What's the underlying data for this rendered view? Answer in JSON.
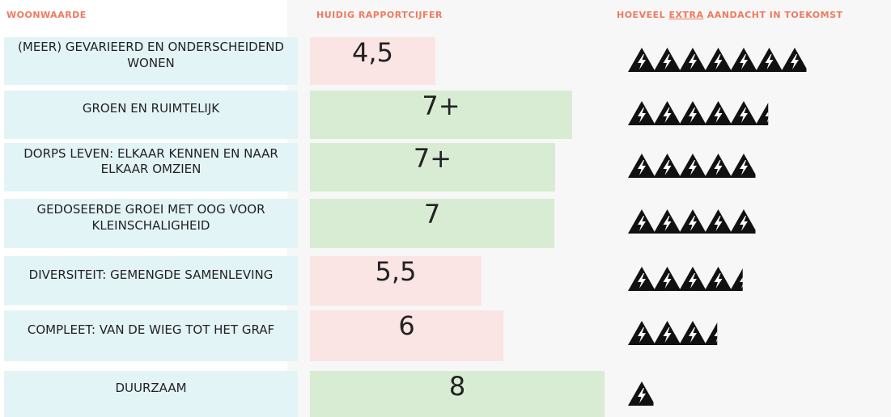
{
  "headers": {
    "label": "WOONWAARDE",
    "grade": "HUIDIG RAPPORTCIJFER",
    "attention": {
      "prefix": "HOEVEEL",
      "emphasis": "EXTRA",
      "suffix": "AANDACHT IN TOEKOMST"
    }
  },
  "rows": [
    {
      "label": "(MEER) GEVARIEERD EN ONDERSCHEIDEND WONEN",
      "grade": "4,5",
      "attention": 7
    },
    {
      "label": "GROEN EN RUIMTELIJK",
      "grade": "7+",
      "attention": 5.5
    },
    {
      "label": "DORPS LEVEN: ELKAAR KENNEN EN NAAR ELKAAR OMZIEN",
      "grade": "7+",
      "attention": 5
    },
    {
      "label": "GEDOSEERDE GROEI MET OOG VOOR KLEINSCHALIGHEID",
      "grade": "7",
      "attention": 5
    },
    {
      "label": "DIVERSITEIT: GEMENGDE SAMENLEVING",
      "grade": "5,5",
      "attention": 4.5
    },
    {
      "label": "COMPLEET: VAN DE WIEG TOT HET GRAF",
      "grade": "6",
      "attention": 3.5
    },
    {
      "label": "DUURZAAM",
      "grade": "8",
      "attention": 1
    }
  ]
}
